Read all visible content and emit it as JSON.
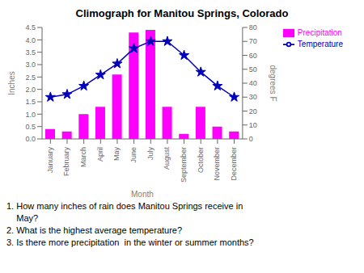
{
  "chart_data": {
    "type": "bar",
    "title": "Climograph for Manitou Springs, Colorado",
    "xlabel": "Month",
    "ylabel": "Inches",
    "y2label": "degrees F",
    "categories": [
      "January",
      "February",
      "March",
      "April",
      "May",
      "June",
      "July",
      "August",
      "September",
      "October",
      "November",
      "December"
    ],
    "series": [
      {
        "name": "Precipitation",
        "type": "bar",
        "color": "#FF00FF",
        "values": [
          0.4,
          0.3,
          1.0,
          1.3,
          2.6,
          4.3,
          4.4,
          1.3,
          0.2,
          1.3,
          0.5,
          0.3
        ]
      },
      {
        "name": "Temperature",
        "type": "line",
        "color": "#0000BB",
        "marker": "star",
        "axis": "y2",
        "values": [
          30,
          32,
          38,
          46,
          54,
          65,
          70,
          70,
          60,
          48,
          38,
          30
        ]
      }
    ],
    "ylim": [
      0,
      4.5
    ],
    "yticks": [
      {
        "value": 0,
        "label": "0.0"
      },
      0.5,
      {
        "value": 1,
        "label": "1.0"
      },
      1.5,
      {
        "value": 2,
        "label": "2.0"
      },
      2.5,
      {
        "value": 3,
        "label": "3.0"
      },
      3.5,
      {
        "value": 4,
        "label": "4.0"
      },
      4.5
    ],
    "y2lim": [
      0,
      80
    ],
    "y2ticks": [
      0,
      10,
      20,
      30,
      40,
      50,
      60,
      70,
      80
    ],
    "legend": "right",
    "annotations": [
      "1. How many inches of rain does Manitou Springs receive in",
      "    May?",
      "2. What is the highest average temperature?",
      "3. Is there more precipitation  in the winter or summer months?"
    ]
  }
}
